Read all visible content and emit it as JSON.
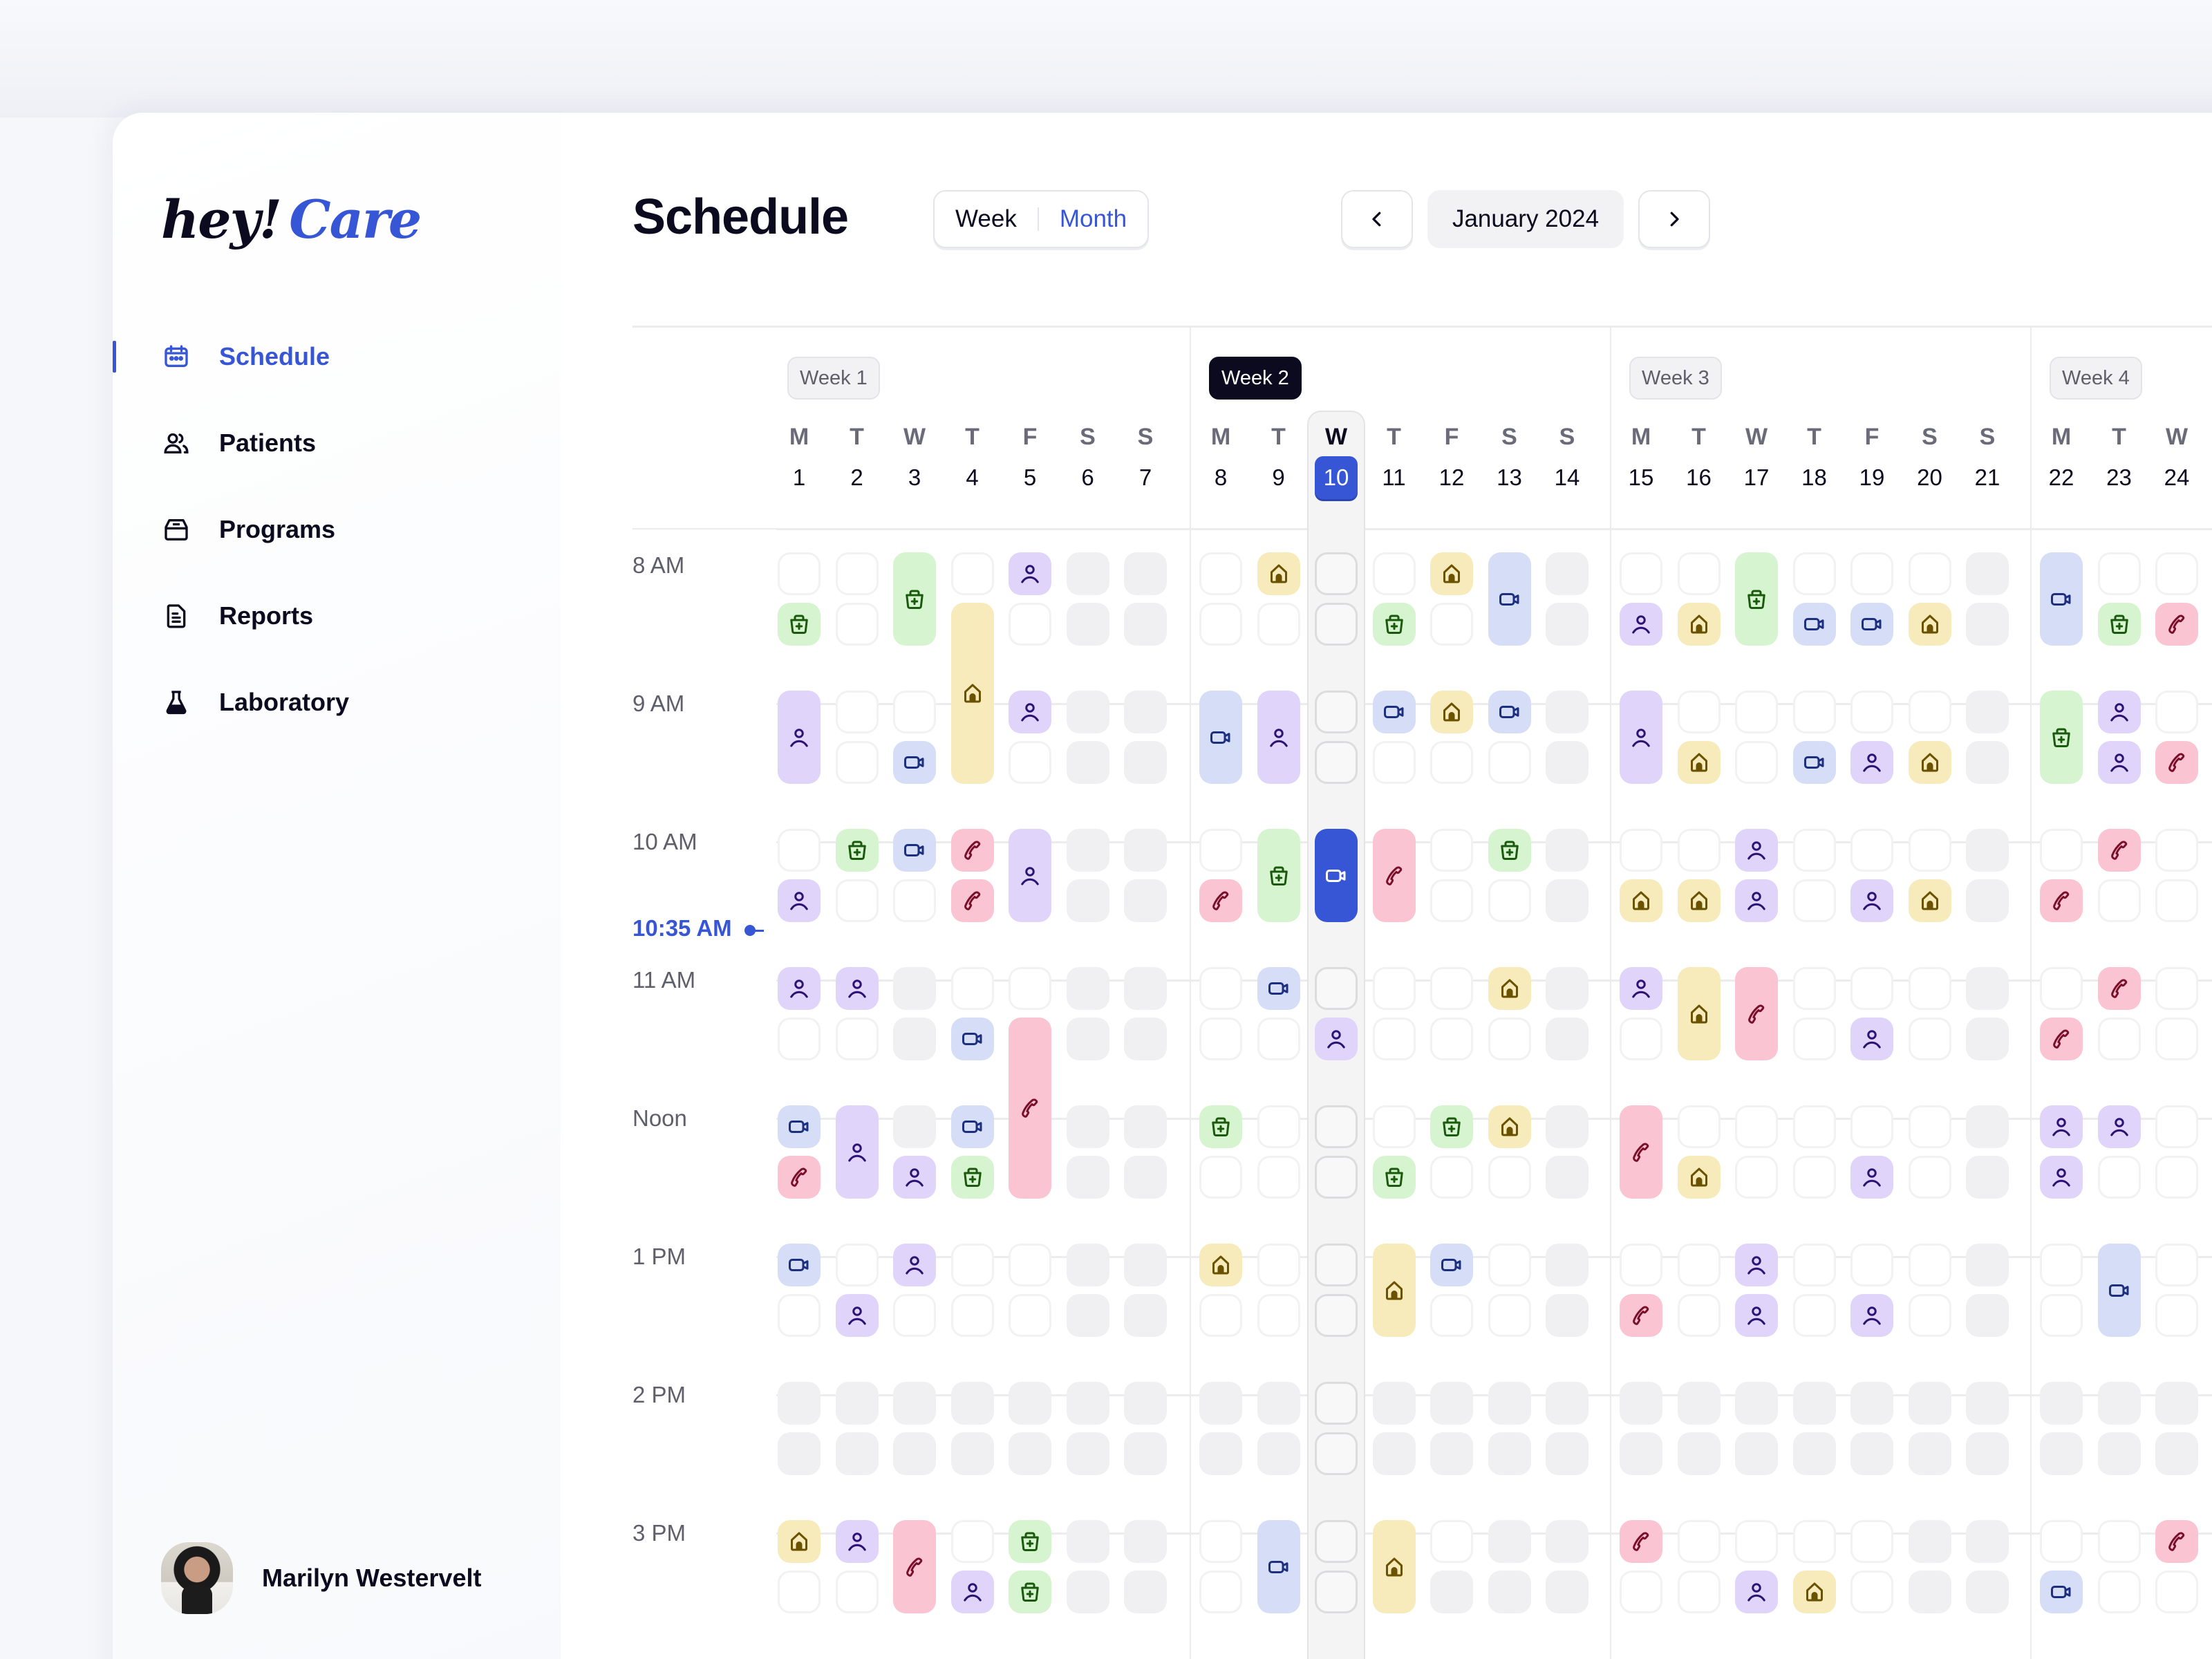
{
  "brand": {
    "hey": "hey!",
    "care": "Care",
    "accent": "#3656d6"
  },
  "sidebar": {
    "items": [
      {
        "label": "Schedule",
        "icon": "calendar-icon",
        "active": true
      },
      {
        "label": "Patients",
        "icon": "users-icon",
        "active": false
      },
      {
        "label": "Programs",
        "icon": "archive-icon",
        "active": false
      },
      {
        "label": "Reports",
        "icon": "document-icon",
        "active": false
      },
      {
        "label": "Laboratory",
        "icon": "flask-icon",
        "active": false
      }
    ],
    "user": {
      "name": "Marilyn Westervelt"
    }
  },
  "header": {
    "title": "Schedule",
    "view_toggle": {
      "week": "Week",
      "month": "Month",
      "selected": "Month"
    },
    "prev_icon": "chevron-left-icon",
    "next_icon": "chevron-right-icon",
    "period": "January 2024"
  },
  "time_labels": [
    "8 AM",
    "9 AM",
    "10 AM",
    "11 AM",
    "Noon",
    "1 PM",
    "2 PM",
    "3 PM"
  ],
  "current_time": "10:35 AM",
  "today": 10,
  "legend_types": {
    "inperson": "person-icon",
    "home": "house-icon",
    "video": "video-icon",
    "phone": "phone-icon",
    "lab": "medkit-icon"
  },
  "weeks": [
    {
      "label": "Week 1",
      "current": false,
      "days": [
        {
          "dow": "M",
          "date": 1,
          "slots": [
            "e",
            "lab",
            "inperson:2",
            "",
            "e",
            "inperson",
            "inperson",
            "e",
            "video",
            "phone",
            "video",
            "e",
            "g",
            "g",
            "home",
            "e"
          ]
        },
        {
          "dow": "T",
          "date": 2,
          "slots": [
            "e",
            "e",
            "e",
            "e",
            "lab",
            "e",
            "inperson",
            "e",
            "inperson:2",
            "",
            "e",
            "inperson",
            "g",
            "g",
            "inperson",
            "e"
          ]
        },
        {
          "dow": "W",
          "date": 3,
          "slots": [
            "lab:2",
            "",
            "e",
            "video",
            "video",
            "e",
            "g",
            "g",
            "g",
            "inperson",
            "inperson",
            "e",
            "g",
            "g",
            "phone:2",
            ""
          ]
        },
        {
          "dow": "T",
          "date": 4,
          "slots": [
            "e",
            "home:3",
            "",
            "home",
            "phone",
            "phone",
            "e",
            "video",
            "video",
            "lab",
            "e",
            "e",
            "g",
            "g",
            "e",
            "inperson"
          ]
        },
        {
          "dow": "F",
          "date": 5,
          "slots": [
            "inperson",
            "e",
            "inperson",
            "e",
            "inperson:2",
            "",
            "e",
            "phone:3",
            "",
            "phone",
            "e",
            "e",
            "g",
            "g",
            "lab",
            "lab"
          ]
        },
        {
          "dow": "S",
          "date": 6,
          "slots": [
            "g",
            "g",
            "g",
            "g",
            "g",
            "g",
            "g",
            "g",
            "g",
            "g",
            "g",
            "g",
            "g",
            "g",
            "g",
            "g"
          ]
        },
        {
          "dow": "S",
          "date": 7,
          "slots": [
            "g",
            "g",
            "g",
            "g",
            "g",
            "g",
            "g",
            "g",
            "g",
            "g",
            "g",
            "g",
            "g",
            "g",
            "g",
            "g"
          ]
        }
      ]
    },
    {
      "label": "Week 2",
      "current": true,
      "days": [
        {
          "dow": "M",
          "date": 8,
          "slots": [
            "e",
            "e",
            "video:2",
            "",
            "e",
            "phone",
            "e",
            "e",
            "lab",
            "e",
            "home",
            "e",
            "g",
            "g",
            "e",
            "e"
          ]
        },
        {
          "dow": "T",
          "date": 9,
          "slots": [
            "home",
            "e",
            "inperson:2",
            "",
            "lab:2",
            "",
            "video",
            "e",
            "e",
            "e",
            "e",
            "e",
            "g",
            "g",
            "video:2",
            ""
          ]
        },
        {
          "dow": "W",
          "date": 10,
          "slots": [
            "e",
            "e",
            "e",
            "e",
            "active:2",
            "",
            "e",
            "inperson",
            "e",
            "e",
            "e",
            "e",
            "e",
            "e",
            "e",
            "e"
          ]
        },
        {
          "dow": "T",
          "date": 11,
          "slots": [
            "e",
            "lab",
            "video",
            "e",
            "phone:2",
            "",
            "e",
            "e",
            "e",
            "lab",
            "home:2",
            "",
            "g",
            "g",
            "home:2",
            ""
          ]
        },
        {
          "dow": "F",
          "date": 12,
          "slots": [
            "home",
            "e",
            "home",
            "e",
            "e",
            "e",
            "e",
            "e",
            "lab",
            "e",
            "video",
            "e",
            "g",
            "g",
            "e",
            "g"
          ]
        },
        {
          "dow": "S",
          "date": 13,
          "slots": [
            "video:2",
            "",
            "video",
            "e",
            "lab",
            "e",
            "home",
            "e",
            "home",
            "e",
            "e",
            "e",
            "g",
            "g",
            "g",
            "g"
          ]
        },
        {
          "dow": "S",
          "date": 14,
          "slots": [
            "g",
            "g",
            "g",
            "g",
            "g",
            "g",
            "g",
            "g",
            "g",
            "g",
            "g",
            "g",
            "g",
            "g",
            "g",
            "g"
          ]
        }
      ]
    },
    {
      "label": "Week 3",
      "current": false,
      "days": [
        {
          "dow": "M",
          "date": 15,
          "slots": [
            "e",
            "inperson",
            "inperson:2",
            "",
            "e",
            "home",
            "inperson",
            "e",
            "phone:2",
            "",
            "e",
            "phone",
            "g",
            "g",
            "phone",
            "e"
          ]
        },
        {
          "dow": "T",
          "date": 16,
          "slots": [
            "e",
            "home",
            "e",
            "home",
            "e",
            "home",
            "home:2",
            "",
            "e",
            "home",
            "e",
            "e",
            "g",
            "g",
            "e",
            "e"
          ]
        },
        {
          "dow": "W",
          "date": 17,
          "slots": [
            "lab:2",
            "",
            "e",
            "e",
            "inperson",
            "inperson",
            "phone:2",
            "",
            "e",
            "e",
            "inperson",
            "inperson",
            "g",
            "g",
            "e",
            "inperson"
          ]
        },
        {
          "dow": "T",
          "date": 18,
          "slots": [
            "e",
            "video",
            "e",
            "video",
            "e",
            "e",
            "e",
            "e",
            "e",
            "e",
            "e",
            "e",
            "g",
            "g",
            "e",
            "home"
          ]
        },
        {
          "dow": "F",
          "date": 19,
          "slots": [
            "e",
            "video",
            "e",
            "inperson",
            "e",
            "inperson",
            "e",
            "inperson",
            "e",
            "inperson",
            "e",
            "inperson",
            "g",
            "g",
            "e",
            "e"
          ]
        },
        {
          "dow": "S",
          "date": 20,
          "slots": [
            "e",
            "home",
            "e",
            "home",
            "e",
            "home",
            "e",
            "e",
            "e",
            "e",
            "e",
            "e",
            "g",
            "g",
            "g",
            "g"
          ]
        },
        {
          "dow": "S",
          "date": 21,
          "slots": [
            "g",
            "g",
            "g",
            "g",
            "g",
            "g",
            "g",
            "g",
            "g",
            "g",
            "g",
            "g",
            "g",
            "g",
            "g",
            "g"
          ]
        }
      ]
    },
    {
      "label": "Week 4",
      "current": false,
      "days": [
        {
          "dow": "M",
          "date": 22,
          "slots": [
            "video:2",
            "",
            "lab:2",
            "",
            "e",
            "phone",
            "e",
            "phone",
            "inperson",
            "inperson",
            "e",
            "e",
            "g",
            "g",
            "e",
            "video"
          ]
        },
        {
          "dow": "T",
          "date": 23,
          "slots": [
            "e",
            "lab",
            "inperson",
            "inperson",
            "phone",
            "e",
            "phone",
            "e",
            "inperson",
            "e",
            "video:2",
            "",
            "g",
            "g",
            "e",
            "e"
          ]
        },
        {
          "dow": "W",
          "date": 24,
          "slots": [
            "e",
            "phone",
            "e",
            "phone",
            "e",
            "e",
            "e",
            "e",
            "e",
            "e",
            "e",
            "e",
            "g",
            "g",
            "phone",
            "e"
          ]
        }
      ]
    }
  ]
}
